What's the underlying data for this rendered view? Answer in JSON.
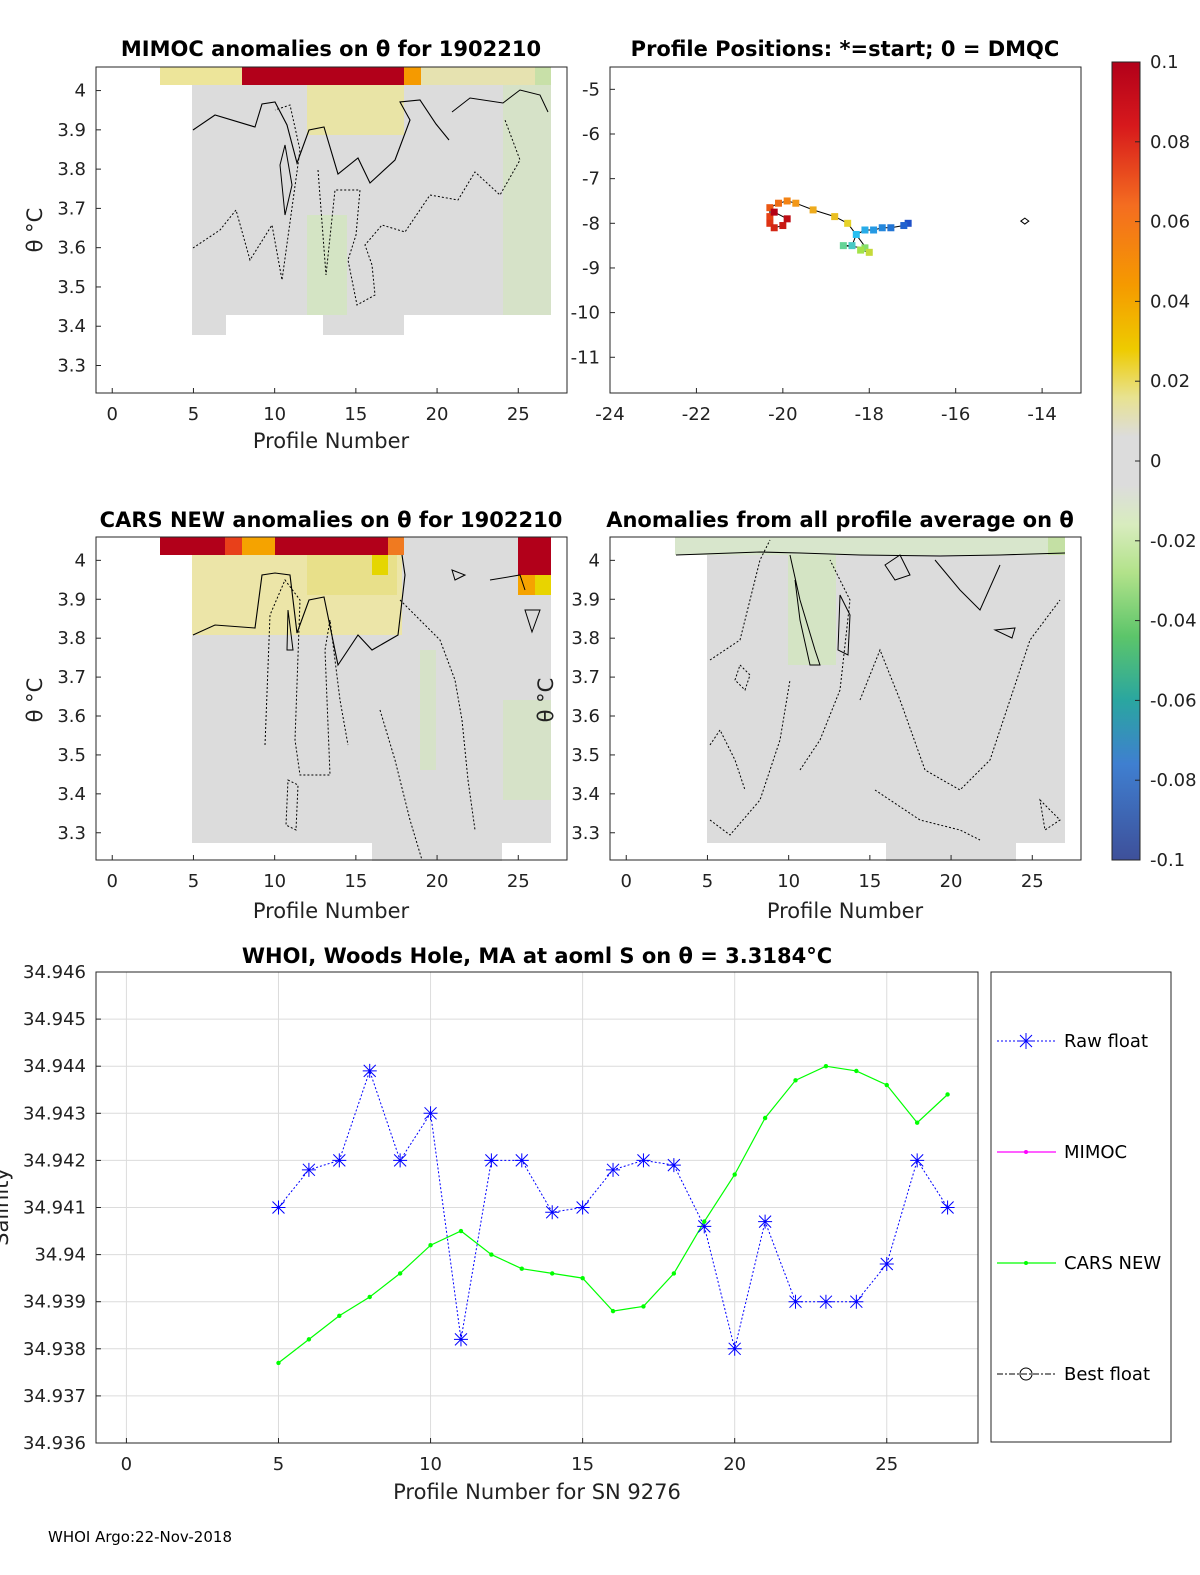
{
  "footer": "WHOI Argo:22-Nov-2018",
  "colorbar": {
    "min": -0.1,
    "max": 0.1,
    "ticks": [
      "0.1",
      "0.08",
      "0.06",
      "0.04",
      "0.02",
      "0",
      "-0.02",
      "-0.04",
      "-0.06",
      "-0.08",
      "-0.1"
    ]
  },
  "chart_data": [
    {
      "id": "mimoc",
      "type": "heatmap",
      "title": "MIMOC anomalies on θ  for 1902210",
      "xlabel": "Profile Number",
      "ylabel": "θ °C",
      "xlim": [
        -1,
        28
      ],
      "ylim": [
        3.23,
        4.06
      ],
      "xticks": [
        0,
        5,
        10,
        15,
        20,
        25
      ],
      "yticks": [
        4,
        3.9,
        3.8,
        3.7,
        3.6,
        3.5,
        3.4,
        3.3
      ]
    },
    {
      "id": "positions",
      "type": "scatter",
      "title": "Profile Positions: *=start; 0 = DMQC",
      "xlim": [
        -24,
        -13.1
      ],
      "ylim": [
        -11.8,
        -4.5
      ],
      "xticks": [
        -24,
        -22,
        -20,
        -18,
        -16,
        -14
      ],
      "yticks": [
        -5,
        -6,
        -7,
        -8,
        -9,
        -10,
        -11
      ],
      "points": [
        [
          -17.1,
          -8.0
        ],
        [
          -17.2,
          -8.05
        ],
        [
          -17.5,
          -8.1
        ],
        [
          -17.7,
          -8.1
        ],
        [
          -17.9,
          -8.15
        ],
        [
          -18.1,
          -8.15
        ],
        [
          -18.3,
          -8.25
        ],
        [
          -18.4,
          -8.5
        ],
        [
          -18.6,
          -8.5
        ],
        [
          -18.1,
          -8.55
        ],
        [
          -18.2,
          -8.6
        ],
        [
          -18.0,
          -8.65
        ],
        [
          -18.5,
          -8.0
        ],
        [
          -18.8,
          -7.85
        ],
        [
          -19.3,
          -7.7
        ],
        [
          -19.7,
          -7.55
        ],
        [
          -19.9,
          -7.5
        ],
        [
          -20.1,
          -7.55
        ],
        [
          -20.3,
          -7.65
        ],
        [
          -20.3,
          -7.85
        ],
        [
          -20.3,
          -8.0
        ],
        [
          -20.2,
          -8.1
        ],
        [
          -20.0,
          -8.05
        ],
        [
          -19.9,
          -7.9
        ],
        [
          -20.2,
          -7.75
        ]
      ],
      "dmqc_point": [
        -14.4,
        -7.95
      ]
    },
    {
      "id": "cars",
      "type": "heatmap",
      "title": "CARS NEW anomalies on θ for 1902210",
      "xlabel": "Profile Number",
      "ylabel": "θ °C",
      "xlim": [
        -1,
        28
      ],
      "ylim": [
        3.23,
        4.06
      ],
      "xticks": [
        0,
        5,
        10,
        15,
        20,
        25
      ],
      "yticks": [
        4,
        3.9,
        3.8,
        3.7,
        3.6,
        3.5,
        3.4,
        3.3
      ]
    },
    {
      "id": "avg",
      "type": "heatmap",
      "title": "Anomalies from all profile average on θ",
      "xlabel": "Profile Number",
      "ylabel": "θ °C",
      "xlim": [
        -1,
        28
      ],
      "ylim": [
        3.23,
        4.06
      ],
      "xticks": [
        0,
        5,
        10,
        15,
        20,
        25
      ],
      "yticks": [
        4,
        3.9,
        3.8,
        3.7,
        3.6,
        3.5,
        3.4,
        3.3
      ]
    },
    {
      "id": "salinity",
      "type": "line",
      "title": "WHOI, Woods Hole, MA at aoml S on θ = 3.3184°C",
      "xlabel": "Profile Number for SN 9276",
      "ylabel": "Salinity",
      "xlim": [
        -1,
        28
      ],
      "ylim": [
        34.936,
        34.946
      ],
      "xticks": [
        0,
        5,
        10,
        15,
        20,
        25
      ],
      "yticks": [
        "34.946",
        "34.945",
        "34.944",
        "34.943",
        "34.942",
        "34.941",
        "34.94",
        "34.939",
        "34.938",
        "34.937",
        "34.936"
      ],
      "x": [
        5,
        6,
        7,
        8,
        9,
        10,
        11,
        12,
        13,
        14,
        15,
        16,
        17,
        18,
        19,
        20,
        21,
        22,
        23,
        24,
        25,
        26,
        27
      ],
      "series": [
        {
          "name": "Raw float",
          "color": "#0000ff",
          "values": [
            34.941,
            34.9418,
            34.942,
            34.9439,
            34.942,
            34.943,
            34.9382,
            34.942,
            34.942,
            34.9409,
            34.941,
            34.9418,
            34.942,
            34.9419,
            34.9406,
            34.938,
            34.9407,
            34.939,
            34.939,
            34.939,
            34.9398,
            34.942,
            34.941
          ]
        },
        {
          "name": "CARS NEW",
          "color": "#00ff00",
          "values": [
            34.9377,
            34.9382,
            34.9387,
            34.9391,
            34.9396,
            34.9402,
            34.9405,
            34.94,
            34.9397,
            34.9396,
            34.9395,
            34.9388,
            34.9389,
            34.9396,
            34.9407,
            34.9417,
            34.9429,
            34.9437,
            34.944,
            34.9439,
            34.9436,
            34.9428,
            34.9434
          ]
        }
      ],
      "legend": [
        "Raw float",
        "MIMOC",
        "CARS NEW",
        "Best float"
      ]
    }
  ]
}
